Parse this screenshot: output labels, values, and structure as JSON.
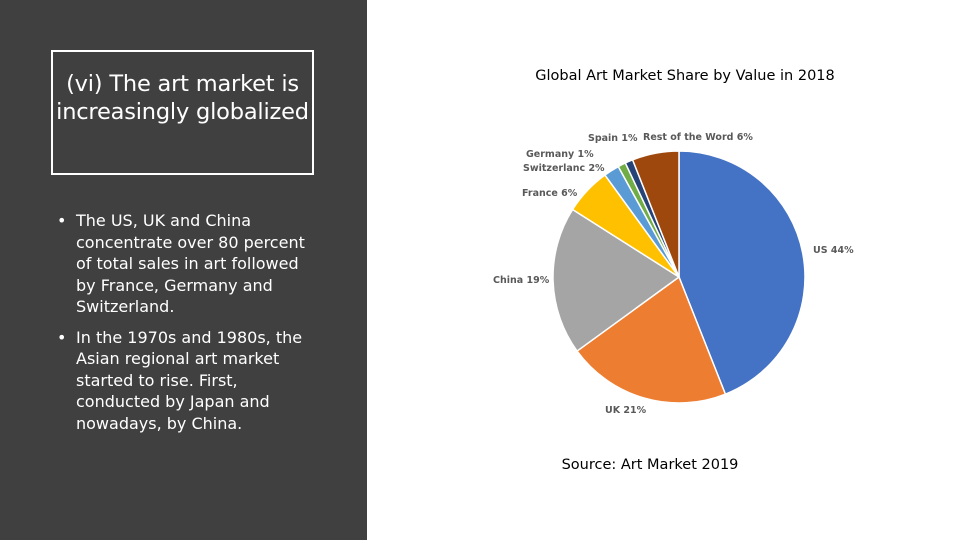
{
  "slide": {
    "title_lines": [
      "(vi) The art market is",
      "increasingly globalized"
    ],
    "bullets": [
      "The US, UK and China concentrate over 80 percent of total sales in art followed by France, Germany and Switzerland.",
      "In the 1970s and 1980s, the Asian regional art market started to rise. First, conducted by Japan and nowadays, by China."
    ],
    "bullet_glyph": "•",
    "source": "Source: Art Market 2019"
  },
  "chart_data": {
    "type": "pie",
    "title": "Global Art Market Share by Value in 2018",
    "slices": [
      {
        "label": "US 44%",
        "value": 44,
        "color": "#4472C4"
      },
      {
        "label": "UK 21%",
        "value": 21,
        "color": "#ED7D31"
      },
      {
        "label": "China 19%",
        "value": 19,
        "color": "#A5A5A5"
      },
      {
        "label": "France 6%",
        "value": 6,
        "color": "#FFC000"
      },
      {
        "label": "Switzerlanc 2%",
        "value": 2,
        "color": "#5B9BD5"
      },
      {
        "label": "Germany 1%",
        "value": 1,
        "color": "#70AD47"
      },
      {
        "label": "Spain 1%",
        "value": 1,
        "color": "#264478"
      },
      {
        "label": "Rest of the Word 6%",
        "value": 6,
        "color": "#9E480E"
      }
    ]
  }
}
